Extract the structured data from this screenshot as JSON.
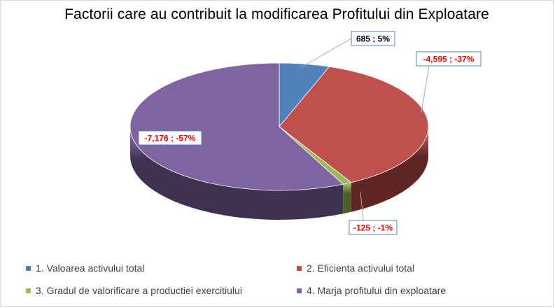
{
  "chart_data": {
    "type": "pie",
    "title": "Factorii care au contribuit la modificarea Profitului din Exploatare",
    "legend_position": "bottom",
    "three_d": true,
    "slices": [
      {
        "name": "1. Valoarea activului total",
        "value": 685,
        "percent": 5,
        "label": "685 ; 5%",
        "color": "#4f81bd",
        "side_color": "#2e4d75",
        "label_color": "#000000"
      },
      {
        "name": "2. Eficienta activului total",
        "value": -4595,
        "percent": -37,
        "label": "-4,595 ; -37%",
        "color": "#c0504d",
        "side_color": "#5e2523",
        "label_color": "#ff0000"
      },
      {
        "name": "3. Gradul de valorificare a productiei exercitiului",
        "value": -125,
        "percent": -1,
        "label": "-125 ; -1%",
        "color": "#9bbb59",
        "side_color": "#4c5e27",
        "label_color": "#ff0000"
      },
      {
        "name": "4. Marja profitului din exploatare",
        "value": -7176,
        "percent": -57,
        "label": "-7,176 ; -57%",
        "color": "#8064a2",
        "side_color": "#3f3152",
        "label_color": "#ff0000"
      }
    ]
  }
}
